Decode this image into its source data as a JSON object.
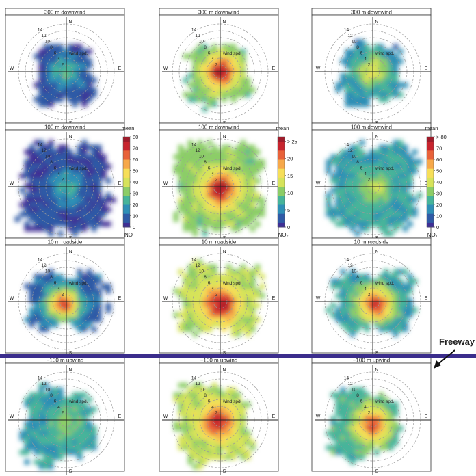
{
  "chart_data": {
    "type": "polar-plot-grid",
    "rows": [
      {
        "title": "300 m downwind"
      },
      {
        "title": "100 m downwind"
      },
      {
        "title": "10 m roadside"
      },
      {
        "title": "−100 m upwind"
      }
    ],
    "columns": [
      {
        "pollutant": "NO",
        "scale_label": "mean",
        "colorbar_ticks": [
          "0",
          "10",
          "20",
          "30",
          "40",
          "50",
          "60",
          "70",
          "80"
        ],
        "range": [
          0,
          80
        ]
      },
      {
        "pollutant": "NO₂",
        "scale_label": "mean",
        "colorbar_ticks": [
          "0",
          "5",
          "10",
          "15",
          "20",
          "> 25"
        ],
        "range": [
          0,
          25
        ]
      },
      {
        "pollutant": "NOₓ",
        "scale_label": "mean",
        "colorbar_ticks": [
          "0",
          "10",
          "20",
          "30",
          "40",
          "50",
          "60",
          "70",
          "> 80"
        ],
        "range": [
          0,
          80
        ]
      }
    ],
    "radial_axis": {
      "label": "wind spd.",
      "ticks": [
        "2",
        "4",
        "6",
        "8",
        "10",
        "12",
        "14"
      ]
    },
    "compass": [
      "N",
      "E",
      "S",
      "W"
    ],
    "colormap": [
      "#3f2f95",
      "#2f5aa6",
      "#2f8fb6",
      "#46b49a",
      "#8ccd67",
      "#d6e35a",
      "#f6de58",
      "#f6a84a",
      "#e8623a",
      "#c7252e",
      "#9e1c2b"
    ]
  },
  "annotation": {
    "freeway_label": "Freeway",
    "line_color": "#3b2d8c"
  }
}
